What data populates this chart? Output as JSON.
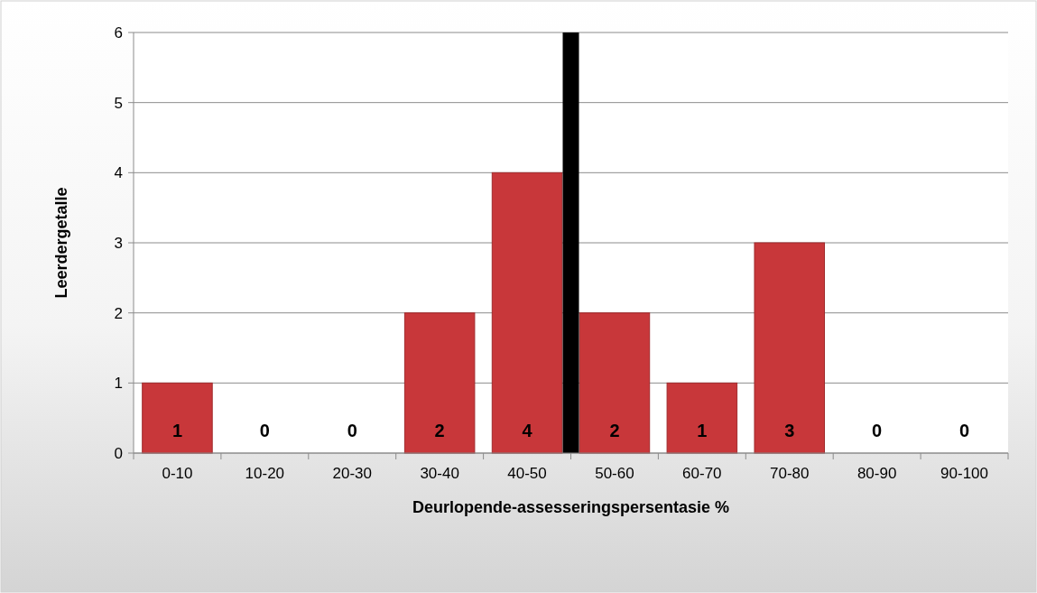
{
  "chart_data": {
    "type": "bar",
    "xlabel": "Deurlopende-assesseringspersentasie %",
    "ylabel": "Leerdergetalle",
    "categories": [
      "0-10",
      "10-20",
      "20-30",
      "30-40",
      "40-50",
      "50-60",
      "60-70",
      "70-80",
      "80-90",
      "90-100"
    ],
    "values": [
      1,
      0,
      0,
      2,
      4,
      2,
      1,
      3,
      0,
      0
    ],
    "color": "#c8373a",
    "ylim": [
      0,
      6
    ],
    "yticks": [
      0,
      1,
      2,
      3,
      4,
      5,
      6
    ],
    "grid": "y",
    "data_labels": true,
    "ref_lines": [
      {
        "axis": "x",
        "value": "40-50",
        "color": "#000000"
      }
    ]
  }
}
